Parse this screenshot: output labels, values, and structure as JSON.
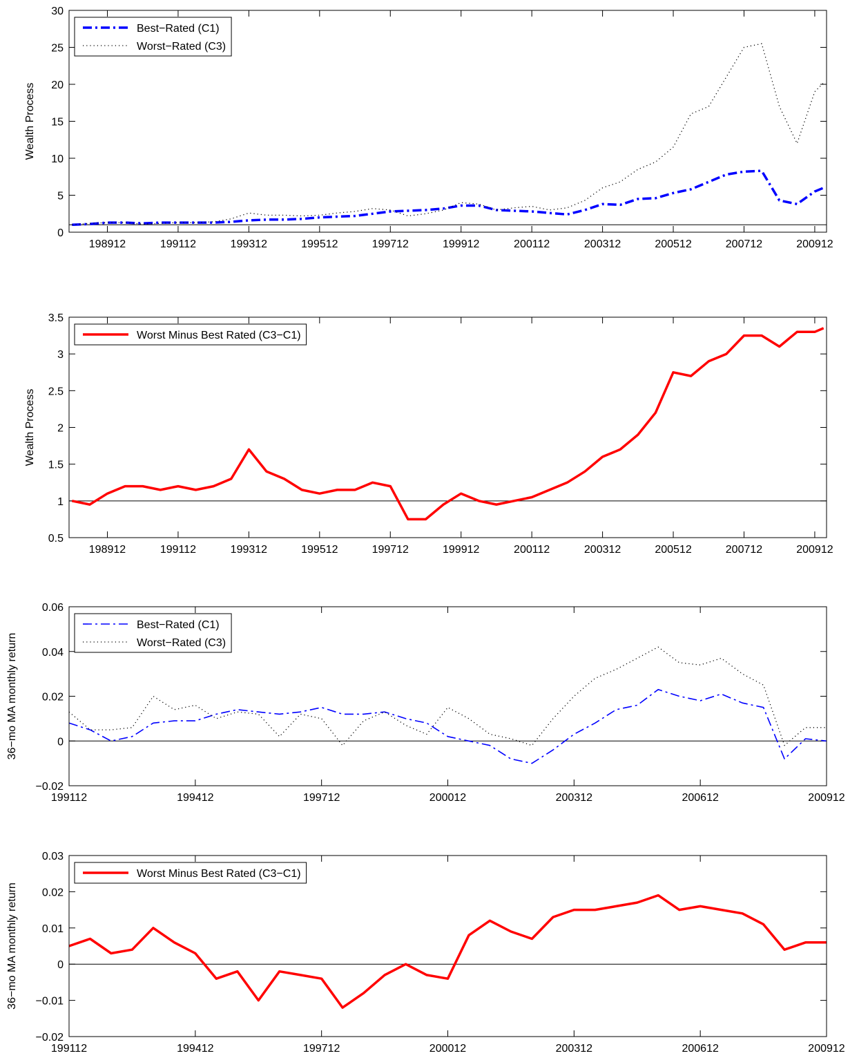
{
  "chart_data": [
    {
      "type": "line",
      "ylabel": "Wealth Process",
      "legend": "upper left",
      "reference_line": 1,
      "xlim": [
        "198811",
        "201004"
      ],
      "ylim": [
        0,
        30
      ],
      "yticks": [
        0,
        5,
        10,
        15,
        20,
        25,
        30
      ],
      "xticks": [
        "198912",
        "199112",
        "199312",
        "199512",
        "199712",
        "199912",
        "200112",
        "200312",
        "200512",
        "200712",
        "200912"
      ],
      "x": [
        "198812",
        "198906",
        "198912",
        "199006",
        "199012",
        "199106",
        "199112",
        "199206",
        "199212",
        "199306",
        "199312",
        "199406",
        "199412",
        "199506",
        "199512",
        "199606",
        "199612",
        "199706",
        "199712",
        "199806",
        "199812",
        "199906",
        "199912",
        "200006",
        "200012",
        "200106",
        "200112",
        "200206",
        "200212",
        "200306",
        "200312",
        "200406",
        "200412",
        "200506",
        "200512",
        "200606",
        "200612",
        "200706",
        "200712",
        "200806",
        "200812",
        "200906",
        "200912",
        "201003"
      ],
      "series": [
        {
          "name": "Best−Rated (C1)",
          "color": "#0000ff",
          "linestyle": "dashdot",
          "linewidth": 3.5,
          "values": [
            1.0,
            1.1,
            1.3,
            1.3,
            1.2,
            1.3,
            1.3,
            1.3,
            1.3,
            1.4,
            1.6,
            1.7,
            1.7,
            1.8,
            2.0,
            2.1,
            2.2,
            2.5,
            2.8,
            2.9,
            3.0,
            3.2,
            3.6,
            3.6,
            3.0,
            2.9,
            2.8,
            2.6,
            2.4,
            3.0,
            3.8,
            3.7,
            4.5,
            4.6,
            5.3,
            5.8,
            6.8,
            7.8,
            8.2,
            8.3,
            4.3,
            3.8,
            5.5,
            6.0
          ]
        },
        {
          "name": "Worst−Rated (C3)",
          "color": "#000000",
          "linestyle": "dotted",
          "linewidth": 1.3,
          "values": [
            1.0,
            1.2,
            1.3,
            1.3,
            1.1,
            1.2,
            1.3,
            1.3,
            1.4,
            1.8,
            2.6,
            2.3,
            2.3,
            2.2,
            2.3,
            2.6,
            2.8,
            3.2,
            3.0,
            2.2,
            2.5,
            3.0,
            4.0,
            3.8,
            3.0,
            3.3,
            3.5,
            3.0,
            3.3,
            4.3,
            6.0,
            6.8,
            8.5,
            9.5,
            11.5,
            16.0,
            17.0,
            21.0,
            25.0,
            25.5,
            17.0,
            12.0,
            19.0,
            20.2
          ]
        }
      ]
    },
    {
      "type": "line",
      "ylabel": "Wealth Process",
      "legend": "upper left",
      "reference_line": 1,
      "xlim": [
        "198811",
        "201004"
      ],
      "ylim": [
        0.5,
        3.5
      ],
      "yticks": [
        0.5,
        1,
        1.5,
        2,
        2.5,
        3,
        3.5
      ],
      "xticks": [
        "198912",
        "199112",
        "199312",
        "199512",
        "199712",
        "199912",
        "200112",
        "200312",
        "200512",
        "200712",
        "200912"
      ],
      "x": [
        "198812",
        "198906",
        "198912",
        "199006",
        "199012",
        "199106",
        "199112",
        "199206",
        "199212",
        "199306",
        "199312",
        "199406",
        "199412",
        "199506",
        "199512",
        "199606",
        "199612",
        "199706",
        "199712",
        "199806",
        "199812",
        "199906",
        "199912",
        "200006",
        "200012",
        "200106",
        "200112",
        "200206",
        "200212",
        "200306",
        "200312",
        "200406",
        "200412",
        "200506",
        "200512",
        "200606",
        "200612",
        "200706",
        "200712",
        "200806",
        "200812",
        "200906",
        "200912",
        "201003"
      ],
      "series": [
        {
          "name": "Worst Minus Best Rated (C3−C1)",
          "color": "#ff0000",
          "linestyle": "solid",
          "linewidth": 3.5,
          "values": [
            1.0,
            0.95,
            1.1,
            1.2,
            1.2,
            1.15,
            1.2,
            1.15,
            1.2,
            1.3,
            1.7,
            1.4,
            1.3,
            1.15,
            1.1,
            1.15,
            1.15,
            1.25,
            1.2,
            0.75,
            0.75,
            0.95,
            1.1,
            1.0,
            0.95,
            1.0,
            1.05,
            1.15,
            1.25,
            1.4,
            1.6,
            1.7,
            1.9,
            2.2,
            2.75,
            2.7,
            2.9,
            3.0,
            3.25,
            3.25,
            3.1,
            3.3,
            3.3,
            3.35
          ]
        }
      ]
    },
    {
      "type": "line",
      "ylabel": "36−mo MA monthly return",
      "legend": "upper left",
      "reference_line": 0,
      "xlim": [
        "199112",
        "200912"
      ],
      "ylim": [
        -0.02,
        0.06
      ],
      "yticks": [
        {
          "value": -0.02,
          "label": "−0.02"
        },
        0,
        0.02,
        0.04,
        0.06
      ],
      "xticks": [
        "199112",
        "199412",
        "199712",
        "200012",
        "200312",
        "200612",
        "200912"
      ],
      "x": [
        "199112",
        "199206",
        "199212",
        "199306",
        "199312",
        "199406",
        "199412",
        "199506",
        "199512",
        "199606",
        "199612",
        "199706",
        "199712",
        "199806",
        "199812",
        "199906",
        "199912",
        "200006",
        "200012",
        "200106",
        "200112",
        "200206",
        "200212",
        "200306",
        "200312",
        "200406",
        "200412",
        "200506",
        "200512",
        "200606",
        "200612",
        "200706",
        "200712",
        "200806",
        "200812",
        "200906",
        "200912"
      ],
      "series": [
        {
          "name": "Best−Rated (C1)",
          "color": "#0000ff",
          "linestyle": "dashdot",
          "linewidth": 1.6,
          "values": [
            0.008,
            0.005,
            0.0,
            0.002,
            0.008,
            0.009,
            0.009,
            0.012,
            0.014,
            0.013,
            0.012,
            0.013,
            0.015,
            0.012,
            0.012,
            0.013,
            0.01,
            0.008,
            0.002,
            0.0,
            -0.002,
            -0.008,
            -0.01,
            -0.004,
            0.003,
            0.008,
            0.014,
            0.016,
            0.023,
            0.02,
            0.018,
            0.021,
            0.017,
            0.015,
            -0.008,
            0.001,
            0.0
          ]
        },
        {
          "name": "Worst−Rated (C3)",
          "color": "#000000",
          "linestyle": "dotted",
          "linewidth": 1.3,
          "values": [
            0.013,
            0.005,
            0.005,
            0.006,
            0.02,
            0.014,
            0.016,
            0.01,
            0.013,
            0.012,
            0.002,
            0.012,
            0.01,
            -0.002,
            0.009,
            0.013,
            0.007,
            0.003,
            0.015,
            0.01,
            0.003,
            0.001,
            -0.002,
            0.01,
            0.02,
            0.028,
            0.032,
            0.037,
            0.042,
            0.035,
            0.034,
            0.037,
            0.03,
            0.025,
            -0.002,
            0.006,
            0.006
          ]
        }
      ]
    },
    {
      "type": "line",
      "ylabel": "36−mo MA monthly return",
      "legend": "upper left",
      "reference_line": 0,
      "xlim": [
        "199112",
        "200912"
      ],
      "ylim": [
        -0.02,
        0.03
      ],
      "yticks": [
        {
          "value": -0.02,
          "label": "−0.02"
        },
        {
          "value": -0.01,
          "label": "−0.01"
        },
        0,
        0.01,
        0.02,
        0.03
      ],
      "xticks": [
        "199112",
        "199412",
        "199712",
        "200012",
        "200312",
        "200612",
        "200912"
      ],
      "x": [
        "199112",
        "199206",
        "199212",
        "199306",
        "199312",
        "199406",
        "199412",
        "199506",
        "199512",
        "199606",
        "199612",
        "199706",
        "199712",
        "199806",
        "199812",
        "199906",
        "199912",
        "200006",
        "200012",
        "200106",
        "200112",
        "200206",
        "200212",
        "200306",
        "200312",
        "200406",
        "200412",
        "200506",
        "200512",
        "200606",
        "200612",
        "200706",
        "200712",
        "200806",
        "200812",
        "200906",
        "200912"
      ],
      "series": [
        {
          "name": "Worst Minus Best Rated (C3−C1)",
          "color": "#ff0000",
          "linestyle": "solid",
          "linewidth": 3.5,
          "values": [
            0.005,
            0.007,
            0.003,
            0.004,
            0.01,
            0.006,
            0.003,
            -0.004,
            -0.002,
            -0.01,
            -0.002,
            -0.003,
            -0.004,
            -0.012,
            -0.008,
            -0.003,
            0.0,
            -0.003,
            -0.004,
            0.008,
            0.012,
            0.009,
            0.007,
            0.013,
            0.015,
            0.015,
            0.016,
            0.017,
            0.019,
            0.015,
            0.016,
            0.015,
            0.014,
            0.011,
            0.004,
            0.006,
            0.006
          ]
        }
      ]
    }
  ]
}
